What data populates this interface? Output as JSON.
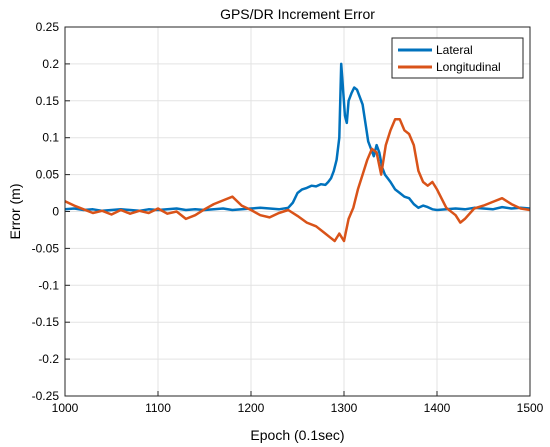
{
  "chart_data": {
    "type": "line",
    "title": "GPS/DR Increment Error",
    "xlabel": "Epoch (0.1sec)",
    "ylabel": "Error (m)",
    "xlim": [
      1000,
      1500
    ],
    "ylim": [
      -0.25,
      0.25
    ],
    "xticks": [
      "1000",
      "1100",
      "1200",
      "1300",
      "1400",
      "1500"
    ],
    "yticks": [
      "0.25",
      "0.2",
      "0.15",
      "0.1",
      "0.05",
      "0",
      "-0.05",
      "-0.1",
      "-0.15",
      "-0.2",
      "-0.25"
    ],
    "grid": true,
    "legend_position": "top-right",
    "series": [
      {
        "name": "Lateral",
        "color": "#0072BD",
        "x": [
          1000,
          1010,
          1020,
          1030,
          1040,
          1050,
          1060,
          1070,
          1080,
          1090,
          1100,
          1110,
          1120,
          1130,
          1140,
          1150,
          1160,
          1170,
          1180,
          1190,
          1200,
          1210,
          1220,
          1230,
          1240,
          1245,
          1250,
          1255,
          1260,
          1265,
          1270,
          1275,
          1280,
          1283,
          1286,
          1289,
          1292,
          1295,
          1297,
          1299,
          1301,
          1303,
          1305,
          1308,
          1311,
          1314,
          1317,
          1320,
          1323,
          1326,
          1329,
          1332,
          1335,
          1338,
          1341,
          1344,
          1347,
          1350,
          1355,
          1360,
          1365,
          1370,
          1375,
          1380,
          1385,
          1390,
          1395,
          1400,
          1410,
          1420,
          1430,
          1440,
          1450,
          1460,
          1470,
          1480,
          1490,
          1500
        ],
        "y": [
          0.003,
          0.004,
          0.002,
          0.003,
          0.001,
          0.002,
          0.003,
          0.002,
          0.001,
          0.003,
          0.002,
          0.003,
          0.004,
          0.002,
          0.003,
          0.002,
          0.003,
          0.004,
          0.002,
          0.003,
          0.004,
          0.005,
          0.004,
          0.003,
          0.005,
          0.012,
          0.025,
          0.03,
          0.032,
          0.035,
          0.034,
          0.037,
          0.036,
          0.04,
          0.045,
          0.055,
          0.07,
          0.1,
          0.2,
          0.165,
          0.13,
          0.12,
          0.15,
          0.16,
          0.168,
          0.165,
          0.155,
          0.145,
          0.12,
          0.095,
          0.085,
          0.075,
          0.09,
          0.08,
          0.06,
          0.05,
          0.045,
          0.04,
          0.03,
          0.025,
          0.02,
          0.018,
          0.01,
          0.005,
          0.008,
          0.006,
          0.003,
          0.002,
          0.003,
          0.004,
          0.003,
          0.005,
          0.004,
          0.003,
          0.006,
          0.004,
          0.005,
          0.004
        ]
      },
      {
        "name": "Longitudinal",
        "color": "#D95319",
        "x": [
          1000,
          1010,
          1020,
          1030,
          1040,
          1050,
          1060,
          1070,
          1080,
          1090,
          1100,
          1110,
          1120,
          1130,
          1140,
          1150,
          1160,
          1170,
          1180,
          1190,
          1200,
          1210,
          1220,
          1230,
          1240,
          1250,
          1260,
          1270,
          1280,
          1285,
          1290,
          1295,
          1300,
          1305,
          1310,
          1315,
          1320,
          1325,
          1330,
          1335,
          1340,
          1345,
          1350,
          1355,
          1360,
          1365,
          1370,
          1375,
          1380,
          1385,
          1390,
          1395,
          1400,
          1410,
          1420,
          1425,
          1430,
          1440,
          1450,
          1460,
          1470,
          1480,
          1490,
          1500
        ],
        "y": [
          0.014,
          0.008,
          0.003,
          -0.002,
          0.001,
          -0.004,
          0.002,
          -0.003,
          0.001,
          -0.002,
          0.004,
          -0.003,
          0.0,
          -0.01,
          -0.005,
          0.003,
          0.01,
          0.015,
          0.02,
          0.008,
          0.002,
          -0.005,
          -0.008,
          -0.002,
          0.002,
          -0.006,
          -0.015,
          -0.02,
          -0.03,
          -0.035,
          -0.04,
          -0.03,
          -0.04,
          -0.01,
          0.005,
          0.03,
          0.05,
          0.07,
          0.085,
          0.08,
          0.05,
          0.09,
          0.11,
          0.125,
          0.125,
          0.11,
          0.105,
          0.09,
          0.055,
          0.04,
          0.035,
          0.04,
          0.03,
          0.005,
          -0.005,
          -0.015,
          -0.01,
          0.004,
          0.008,
          0.013,
          0.018,
          0.01,
          0.004,
          0.002
        ]
      }
    ]
  }
}
